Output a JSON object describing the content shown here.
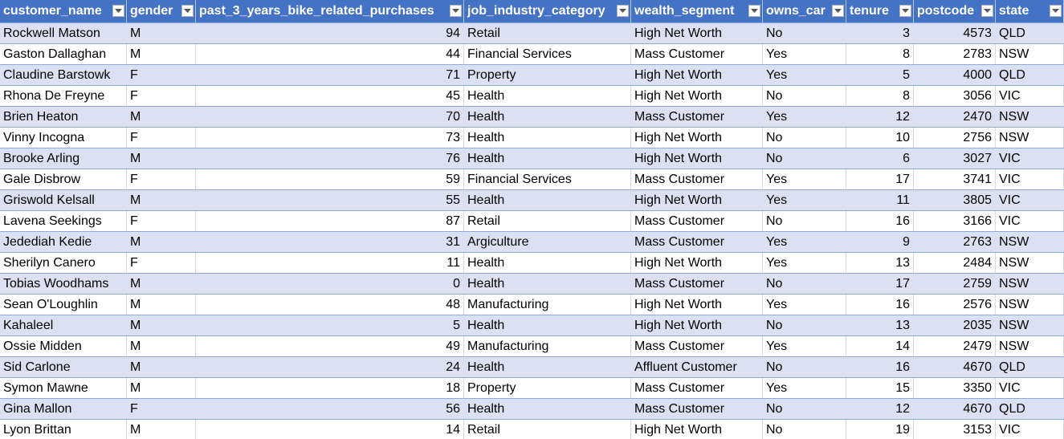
{
  "table": {
    "headers": [
      "customer_name",
      "gender",
      "past_3_years_bike_related_purchases",
      "job_industry_category",
      "wealth_segment",
      "owns_car",
      "tenure",
      "postcode",
      "state"
    ],
    "filter_icon": "dropdown-arrow-icon",
    "colors": {
      "header_bg": "#4472C4",
      "header_text": "#FFFFFF",
      "band_bg": "#D9E1F2",
      "row_bg": "#FFFFFF",
      "row_border": "#8EA9DB"
    },
    "rows": [
      [
        "Rockwell Matson",
        "M",
        "94",
        "Retail",
        "High Net Worth",
        "No",
        "3",
        "4573",
        "QLD"
      ],
      [
        "Gaston Dallaghan",
        "M",
        "44",
        "Financial Services",
        "Mass Customer",
        "Yes",
        "8",
        "2783",
        "NSW"
      ],
      [
        "Claudine Barstowk",
        "F",
        "71",
        "Property",
        "High Net Worth",
        "Yes",
        "5",
        "4000",
        "QLD"
      ],
      [
        "Rhona De Freyne",
        "F",
        "45",
        "Health",
        "High Net Worth",
        "No",
        "8",
        "3056",
        "VIC"
      ],
      [
        "Brien Heaton",
        "M",
        "70",
        "Health",
        "Mass Customer",
        "Yes",
        "12",
        "2470",
        "NSW"
      ],
      [
        "Vinny Incogna",
        "F",
        "73",
        "Health",
        "High Net Worth",
        "No",
        "10",
        "2756",
        "NSW"
      ],
      [
        "Brooke Arling",
        "M",
        "76",
        "Health",
        "High Net Worth",
        "No",
        "6",
        "3027",
        "VIC"
      ],
      [
        "Gale Disbrow",
        "F",
        "59",
        "Financial Services",
        "Mass Customer",
        "Yes",
        "17",
        "3741",
        "VIC"
      ],
      [
        "Griswold Kelsall",
        "M",
        "55",
        "Health",
        "High Net Worth",
        "Yes",
        "11",
        "3805",
        "VIC"
      ],
      [
        "Lavena Seekings",
        "F",
        "87",
        "Retail",
        "Mass Customer",
        "No",
        "16",
        "3166",
        "VIC"
      ],
      [
        "Jedediah Kedie",
        "M",
        "31",
        "Argiculture",
        "Mass Customer",
        "Yes",
        "9",
        "2763",
        "NSW"
      ],
      [
        "Sherilyn Canero",
        "F",
        "11",
        "Health",
        "High Net Worth",
        "Yes",
        "13",
        "2484",
        "NSW"
      ],
      [
        "Tobias Woodhams",
        "M",
        "0",
        "Health",
        "Mass Customer",
        "No",
        "17",
        "2759",
        "NSW"
      ],
      [
        "Sean O'Loughlin",
        "M",
        "48",
        "Manufacturing",
        "High Net Worth",
        "Yes",
        "16",
        "2576",
        "NSW"
      ],
      [
        "Kahaleel",
        "M",
        "5",
        "Health",
        "High Net Worth",
        "No",
        "13",
        "2035",
        "NSW"
      ],
      [
        "Ossie Midden",
        "M",
        "49",
        "Manufacturing",
        "Mass Customer",
        "Yes",
        "14",
        "2479",
        "NSW"
      ],
      [
        "Sid Carlone",
        "M",
        "24",
        "Health",
        "Affluent Customer",
        "No",
        "16",
        "4670",
        "QLD"
      ],
      [
        "Symon Mawne",
        "M",
        "18",
        "Property",
        "Mass Customer",
        "Yes",
        "15",
        "3350",
        "VIC"
      ],
      [
        "Gina Mallon",
        "F",
        "56",
        "Health",
        "Mass Customer",
        "No",
        "12",
        "4670",
        "QLD"
      ],
      [
        "Lyon Brittan",
        "M",
        "14",
        "Retail",
        "High Net Worth",
        "No",
        "19",
        "3153",
        "VIC"
      ]
    ]
  }
}
